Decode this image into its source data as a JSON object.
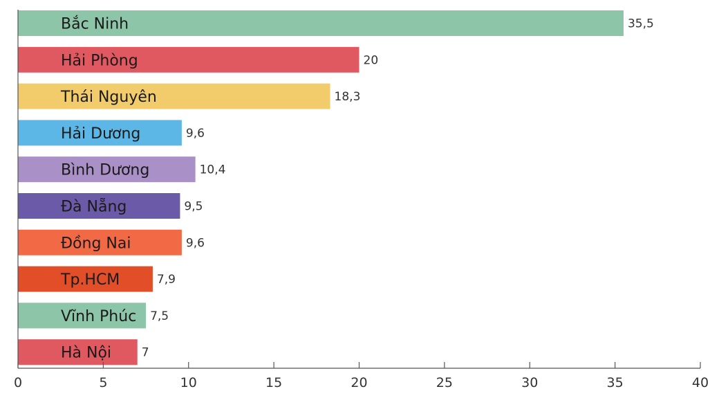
{
  "chart_data": {
    "type": "bar",
    "orientation": "horizontal",
    "categories": [
      "Bắc Ninh",
      "Hải Phòng",
      "Thái Nguyên",
      "Hải Dương",
      "Bình Dương",
      "Đà Nẵng",
      "Đồng Nai",
      "Tp.HCM",
      "Vĩnh Phúc",
      "Hà Nội"
    ],
    "values": [
      35.5,
      20,
      18.3,
      9.6,
      10.4,
      9.5,
      9.6,
      7.9,
      7.5,
      7
    ],
    "value_labels": [
      "35,5",
      "20",
      "18,3",
      "9,6",
      "10,4",
      "9,5",
      "9,6",
      "7,9",
      "7,5",
      "7"
    ],
    "colors": [
      "#8cc5a8",
      "#e05860",
      "#f2cc6a",
      "#5db7e6",
      "#a990c6",
      "#6a5aa8",
      "#f26a45",
      "#e24e28",
      "#8cc5a8",
      "#e05860"
    ],
    "xlim": [
      0,
      40
    ],
    "xticks": [
      0,
      5,
      10,
      15,
      20,
      25,
      30,
      35,
      40
    ],
    "title": "",
    "xlabel": "",
    "ylabel": "",
    "grid": false,
    "legend": "none"
  }
}
